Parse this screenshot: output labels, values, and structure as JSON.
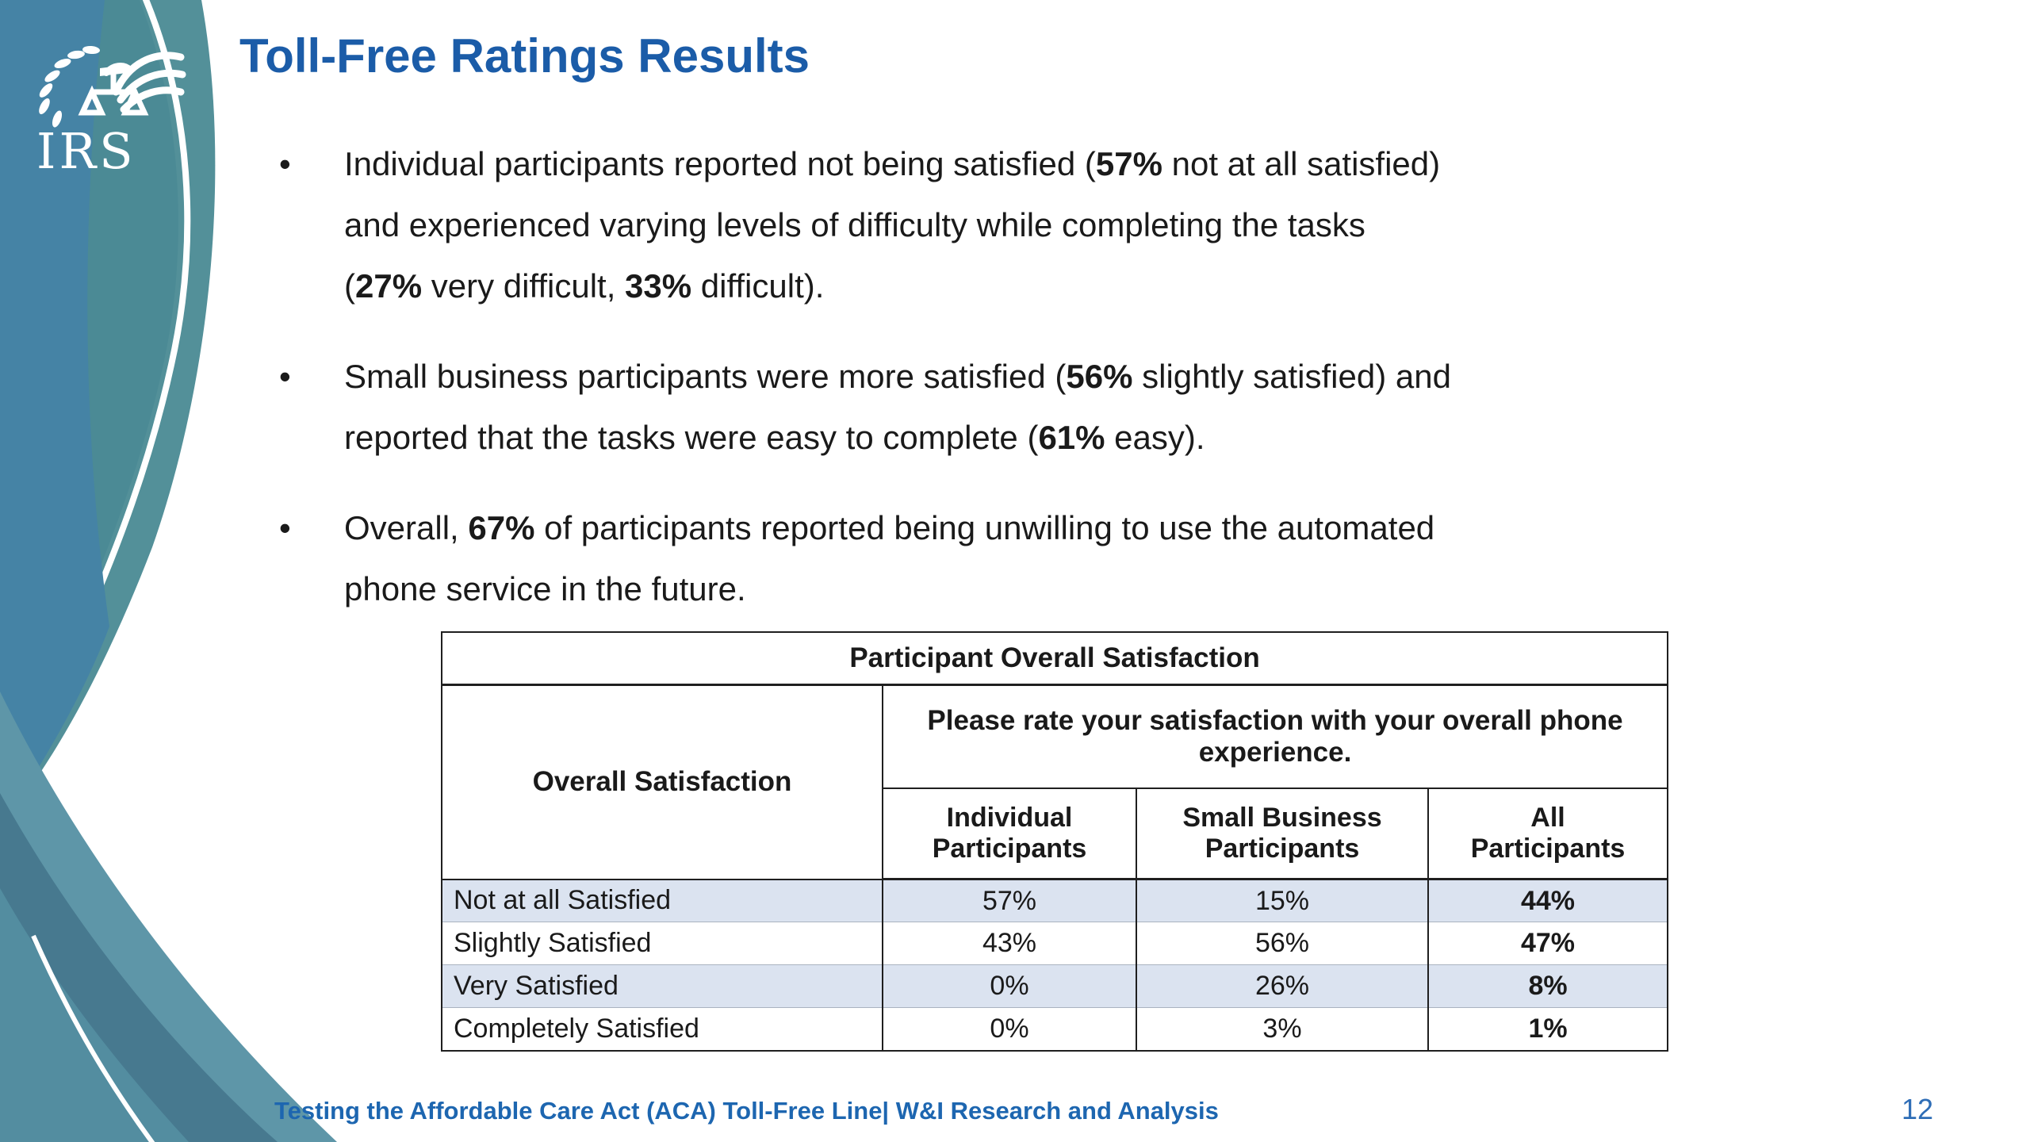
{
  "slide": {
    "title": "Toll-Free Ratings Results",
    "logo": {
      "icon": "irs-eagle-scales-emblem",
      "wordmark": "IRS"
    },
    "bullets": [
      {
        "segments": [
          {
            "t": "Individual participants reported not being satisfied (",
            "b": false
          },
          {
            "t": "57%",
            "b": true
          },
          {
            "t": " not at all satisfied)\nand experienced varying levels of difficulty while completing the tasks\n(",
            "b": false
          },
          {
            "t": "27%",
            "b": true
          },
          {
            "t": " very difficult, ",
            "b": false
          },
          {
            "t": "33%",
            "b": true
          },
          {
            "t": " difficult).",
            "b": false
          }
        ]
      },
      {
        "segments": [
          {
            "t": "Small business participants were more satisfied (",
            "b": false
          },
          {
            "t": "56%",
            "b": true
          },
          {
            "t": " slightly satisfied) and\nreported that the tasks were easy to complete (",
            "b": false
          },
          {
            "t": "61%",
            "b": true
          },
          {
            "t": " easy).",
            "b": false
          }
        ]
      },
      {
        "segments": [
          {
            "t": "Overall, ",
            "b": false
          },
          {
            "t": "67%",
            "b": true
          },
          {
            "t": " of participants reported being unwilling to use the automated\nphone service in the future.",
            "b": false
          }
        ]
      }
    ],
    "footer": {
      "left": "Testing the Affordable Care Act (ACA) Toll-Free Line| W&I Research and Analysis",
      "page": "12"
    }
  },
  "table": {
    "title": "Participant Overall Satisfaction",
    "row_header": "Overall Satisfaction",
    "question": "Please rate your satisfaction with your overall phone experience.",
    "columns": [
      [
        "Individual",
        "Participants"
      ],
      [
        "Small Business",
        "Participants"
      ],
      [
        "All",
        "Participants"
      ]
    ],
    "rows": [
      {
        "label": "Not at all Satisfied",
        "values": [
          "57%",
          "15%",
          "44%"
        ],
        "shaded": true
      },
      {
        "label": "Slightly Satisfied",
        "values": [
          "43%",
          "56%",
          "47%"
        ],
        "shaded": false
      },
      {
        "label": "Very Satisfied",
        "values": [
          "0%",
          "26%",
          "8%"
        ],
        "shaded": true
      },
      {
        "label": "Completely Satisfied",
        "values": [
          "0%",
          "3%",
          "1%"
        ],
        "shaded": false
      }
    ]
  },
  "chart_data": {
    "type": "table",
    "title": "Participant Overall Satisfaction",
    "question": "Please rate your satisfaction with your overall phone experience.",
    "row_header": "Overall Satisfaction",
    "columns": [
      "Individual Participants",
      "Small Business Participants",
      "All Participants"
    ],
    "rows": [
      "Not at all Satisfied",
      "Slightly Satisfied",
      "Very Satisfied",
      "Completely Satisfied"
    ],
    "values_percent": [
      [
        57,
        15,
        44
      ],
      [
        43,
        56,
        47
      ],
      [
        0,
        26,
        8
      ],
      [
        0,
        3,
        1
      ]
    ]
  },
  "colors": {
    "title_blue": "#1b5ca8",
    "footer_blue": "#1d66b0",
    "shaded_row": "#dbe3f0",
    "swoosh_blue": "#4583a5",
    "swoosh_teal": "#4b8a95",
    "swoosh_rim": "#539099",
    "swoosh_bottom_light": "#5e96a8",
    "swoosh_bottom_dark": "#47798f",
    "swoosh_bottom_mid": "#538da0"
  }
}
